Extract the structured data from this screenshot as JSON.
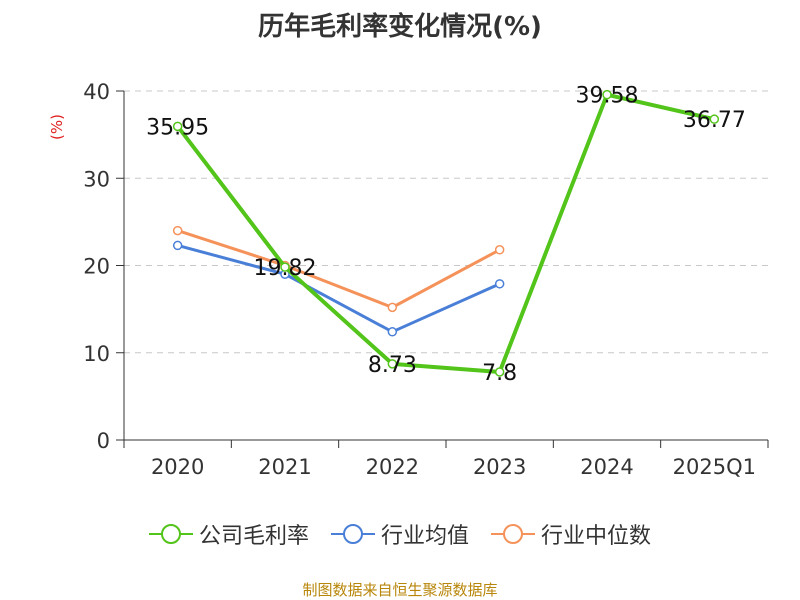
{
  "title": "历年毛利率变化情况(%)",
  "source": "制图数据来自恒生聚源数据库",
  "colors": {
    "gross_margin": "#52c41a",
    "industry_avg": "#4a7fd8",
    "industry_median": "#f5925a"
  },
  "chart_data": {
    "type": "line",
    "title": "历年毛利率变化情况(%)",
    "ylabel": "(%)",
    "xlabel": "",
    "ylim": [
      0,
      40
    ],
    "yticks": [
      "0",
      "10",
      "20",
      "30",
      "40"
    ],
    "grid": true,
    "legend_position": "bottom",
    "categories": [
      "2020",
      "2021",
      "2022",
      "2023",
      "2024",
      "2025Q1"
    ],
    "series": [
      {
        "name": "公司毛利率",
        "values": [
          35.95,
          19.82,
          8.73,
          7.8,
          39.58,
          36.77
        ],
        "labels": [
          "35.95",
          "19.82",
          "8.73",
          "7.8",
          "39.58",
          "36.77"
        ]
      },
      {
        "name": "行业均值",
        "values": [
          22.3,
          19.0,
          12.4,
          17.9,
          null,
          null
        ]
      },
      {
        "name": "行业中位数",
        "values": [
          24.0,
          20.0,
          15.2,
          21.8,
          null,
          null
        ]
      }
    ]
  }
}
